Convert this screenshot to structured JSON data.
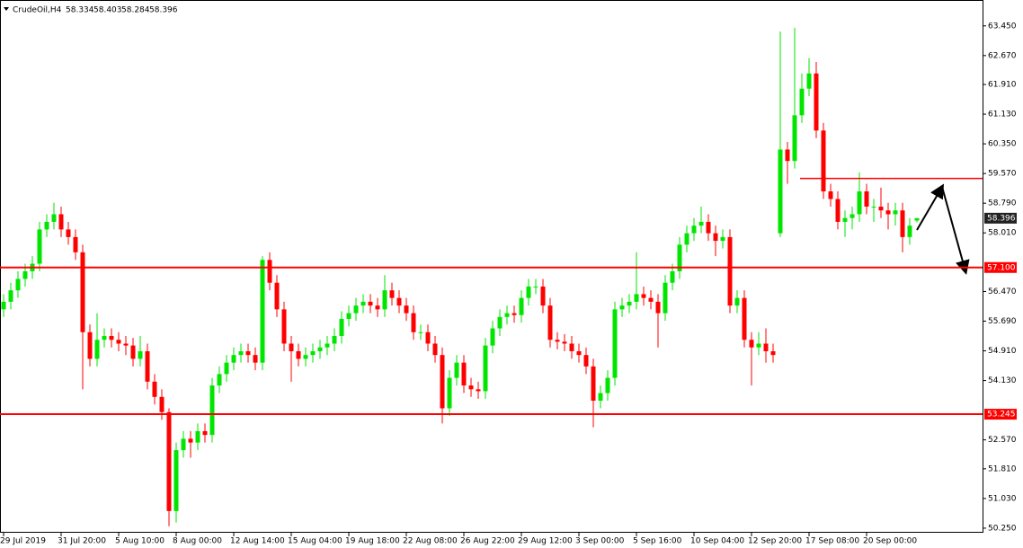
{
  "chart_data": {
    "type": "candlestick",
    "symbol": "CrudeOil,H4",
    "header_ohlc": [
      58.334,
      58.403,
      58.284,
      58.396
    ],
    "up_color": "#00e600",
    "down_color": "#ff0000",
    "level_color": "#ff0000",
    "ylim": [
      50.13,
      64.13
    ],
    "yticks": [
      {
        "value": 63.45,
        "label": "63.450"
      },
      {
        "value": 62.67,
        "label": "62.670"
      },
      {
        "value": 61.91,
        "label": "61.910"
      },
      {
        "value": 61.13,
        "label": "61.130"
      },
      {
        "value": 60.35,
        "label": "60.350"
      },
      {
        "value": 59.57,
        "label": "59.570"
      },
      {
        "value": 58.79,
        "label": "58.790"
      },
      {
        "value": 58.01,
        "label": "58.010"
      },
      {
        "value": 56.47,
        "label": "56.470"
      },
      {
        "value": 55.69,
        "label": "55.690"
      },
      {
        "value": 54.91,
        "label": "54.910"
      },
      {
        "value": 54.13,
        "label": "54.130"
      },
      {
        "value": 52.57,
        "label": "52.570"
      },
      {
        "value": 51.81,
        "label": "51.810"
      },
      {
        "value": 51.03,
        "label": "51.030"
      },
      {
        "value": 50.25,
        "label": "50.250"
      }
    ],
    "levels": [
      {
        "value": 57.1,
        "label": "57.100"
      },
      53.245
    ],
    "partial_level": 59.44,
    "last_price": 58.396,
    "categories": [
      "29 Jul 2019",
      null,
      null,
      null,
      null,
      null,
      null,
      null,
      "31 Jul 20:00",
      null,
      null,
      null,
      null,
      null,
      null,
      null,
      "5 Aug 10:00",
      null,
      null,
      null,
      null,
      null,
      null,
      null,
      "8 Aug 00:00",
      null,
      null,
      null,
      null,
      null,
      null,
      null,
      "12 Aug 14:00",
      null,
      null,
      null,
      null,
      null,
      null,
      null,
      "15 Aug 04:00",
      null,
      null,
      null,
      null,
      null,
      null,
      null,
      "19 Aug 18:00",
      null,
      null,
      null,
      null,
      null,
      null,
      null,
      "22 Aug 08:00",
      null,
      null,
      null,
      null,
      null,
      null,
      null,
      "26 Aug 22:00",
      null,
      null,
      null,
      null,
      null,
      null,
      null,
      "29 Aug 12:00",
      null,
      null,
      null,
      null,
      null,
      null,
      null,
      "3 Sep 00:00",
      null,
      null,
      null,
      null,
      null,
      null,
      null,
      "5 Sep 16:00",
      null,
      null,
      null,
      null,
      null,
      null,
      null,
      "10 Sep 04:00",
      null,
      null,
      null,
      null,
      null,
      null,
      null,
      "12 Sep 20:00",
      null,
      null,
      null,
      null,
      null,
      null,
      null,
      "17 Sep 08:00",
      null,
      null,
      null,
      null,
      null,
      null,
      null,
      "20 Sep 00:00",
      null,
      null,
      null,
      null,
      null,
      null,
      null
    ],
    "open": [
      56.0,
      56.2,
      56.5,
      56.8,
      57.0,
      57.2,
      58.1,
      58.3,
      58.5,
      58.1,
      57.9,
      57.5,
      55.4,
      54.7,
      55.2,
      55.3,
      55.2,
      55.1,
      55.05,
      54.7,
      54.9,
      54.1,
      53.7,
      53.3,
      50.7,
      52.3,
      52.6,
      52.5,
      52.8,
      52.7,
      54.0,
      54.3,
      54.6,
      54.8,
      54.9,
      54.8,
      54.6,
      57.3,
      56.7,
      56.0,
      55.1,
      54.9,
      54.7,
      54.8,
      54.9,
      55.0,
      55.1,
      55.3,
      55.75,
      55.9,
      56.1,
      56.2,
      56.1,
      56.0,
      56.5,
      56.3,
      56.1,
      55.9,
      55.4,
      55.4,
      55.1,
      54.8,
      53.4,
      54.2,
      54.6,
      54.0,
      53.9,
      53.85,
      55.05,
      55.5,
      55.8,
      55.9,
      55.85,
      56.3,
      56.6,
      56.6,
      56.1,
      55.2,
      55.15,
      55.1,
      54.9,
      54.8,
      54.5,
      53.6,
      53.8,
      54.2,
      56.0,
      56.1,
      56.2,
      56.4,
      56.3,
      56.2,
      55.9,
      56.7,
      57.0,
      57.7,
      58.0,
      58.2,
      58.3,
      58.0,
      57.8,
      57.9,
      56.1,
      56.3,
      55.2,
      55.0,
      55.1,
      54.9,
      58.0,
      60.2,
      59.9,
      61.1,
      61.8,
      62.2,
      60.7,
      59.1,
      58.9,
      58.3,
      58.4,
      58.5,
      59.1,
      58.7,
      58.7,
      58.6,
      58.5,
      58.6,
      57.9,
      58.334
    ],
    "high": [
      56.4,
      56.7,
      57.0,
      57.2,
      57.4,
      58.3,
      58.5,
      58.8,
      58.7,
      58.3,
      58.1,
      57.7,
      55.6,
      55.9,
      55.5,
      55.5,
      55.4,
      55.3,
      55.25,
      55.3,
      55.1,
      54.3,
      53.9,
      53.4,
      52.5,
      52.8,
      52.8,
      53.0,
      53.0,
      54.2,
      54.5,
      54.8,
      55.0,
      55.1,
      55.1,
      55.0,
      57.4,
      57.5,
      56.9,
      56.2,
      55.3,
      55.1,
      55.0,
      55.1,
      55.2,
      55.3,
      55.5,
      55.95,
      56.1,
      56.3,
      56.4,
      56.4,
      56.3,
      56.9,
      56.7,
      56.5,
      56.3,
      56.1,
      55.6,
      55.6,
      55.3,
      55.0,
      54.4,
      54.8,
      54.8,
      54.2,
      54.1,
      55.25,
      55.7,
      56.0,
      56.1,
      56.1,
      56.5,
      56.8,
      56.8,
      56.8,
      56.3,
      55.4,
      55.35,
      55.3,
      55.1,
      55.0,
      54.7,
      54.0,
      54.4,
      56.2,
      56.3,
      56.4,
      57.5,
      56.6,
      56.5,
      56.4,
      56.9,
      57.2,
      57.9,
      58.2,
      58.4,
      58.7,
      58.5,
      58.2,
      58.1,
      58.1,
      56.5,
      56.5,
      55.4,
      55.4,
      55.5,
      55.1,
      63.3,
      60.4,
      63.4,
      62.2,
      62.6,
      62.5,
      60.9,
      59.3,
      59.1,
      58.6,
      58.7,
      59.6,
      59.3,
      58.9,
      59.2,
      58.8,
      58.8,
      58.8,
      58.4,
      58.403
    ],
    "low": [
      55.8,
      56.0,
      56.3,
      56.6,
      56.8,
      57.0,
      57.9,
      58.1,
      57.9,
      57.7,
      57.3,
      53.9,
      54.5,
      54.5,
      55.0,
      55.0,
      54.9,
      54.8,
      54.5,
      54.5,
      53.9,
      53.5,
      53.1,
      50.3,
      50.4,
      52.1,
      52.1,
      52.3,
      52.5,
      52.5,
      53.8,
      54.1,
      54.4,
      54.6,
      54.6,
      54.4,
      54.4,
      56.5,
      55.8,
      54.9,
      54.1,
      54.5,
      54.5,
      54.6,
      54.7,
      54.8,
      54.9,
      55.1,
      55.55,
      55.7,
      55.9,
      55.9,
      55.8,
      55.8,
      56.1,
      55.9,
      55.7,
      55.2,
      55.2,
      54.9,
      54.6,
      53.0,
      53.2,
      54.0,
      53.8,
      53.7,
      53.65,
      53.65,
      54.85,
      55.3,
      55.6,
      55.65,
      55.65,
      56.1,
      56.4,
      55.9,
      55.0,
      54.95,
      54.9,
      54.7,
      54.6,
      54.3,
      52.9,
      53.4,
      53.6,
      54.0,
      55.8,
      55.9,
      56.0,
      56.1,
      56.0,
      55.0,
      55.7,
      56.5,
      56.8,
      57.5,
      57.8,
      58.0,
      57.8,
      57.4,
      57.6,
      55.9,
      55.9,
      55.0,
      54.0,
      54.8,
      54.6,
      54.6,
      57.9,
      59.3,
      59.7,
      60.9,
      61.6,
      60.5,
      58.9,
      58.7,
      58.1,
      57.9,
      58.1,
      58.3,
      58.5,
      58.3,
      58.4,
      58.1,
      58.2,
      57.5,
      57.7,
      58.284
    ],
    "close": [
      56.2,
      56.5,
      56.8,
      57.0,
      57.2,
      58.1,
      58.3,
      58.5,
      58.1,
      57.9,
      57.5,
      55.4,
      54.7,
      55.2,
      55.3,
      55.2,
      55.1,
      55.05,
      54.7,
      54.9,
      54.1,
      53.7,
      53.3,
      50.7,
      52.3,
      52.6,
      52.5,
      52.8,
      52.7,
      54.0,
      54.3,
      54.6,
      54.8,
      54.9,
      54.8,
      54.6,
      57.3,
      56.7,
      56.0,
      55.1,
      54.9,
      54.7,
      54.8,
      54.9,
      55.0,
      55.1,
      55.3,
      55.75,
      55.9,
      56.1,
      56.2,
      56.1,
      56.0,
      56.5,
      56.3,
      56.1,
      55.9,
      55.4,
      55.4,
      55.1,
      54.8,
      53.4,
      54.2,
      54.6,
      54.0,
      53.9,
      53.85,
      55.05,
      55.5,
      55.8,
      55.9,
      55.85,
      56.3,
      56.6,
      56.6,
      56.1,
      55.2,
      55.15,
      55.1,
      54.9,
      54.8,
      54.5,
      53.6,
      53.8,
      54.2,
      56.0,
      56.1,
      56.2,
      56.4,
      56.3,
      56.2,
      55.9,
      56.7,
      57.0,
      57.7,
      58.0,
      58.2,
      58.3,
      58.0,
      57.8,
      57.9,
      56.1,
      56.3,
      55.2,
      55.0,
      55.1,
      54.9,
      54.8,
      60.2,
      59.9,
      61.1,
      61.8,
      62.2,
      60.7,
      59.1,
      58.9,
      58.3,
      58.4,
      58.5,
      59.1,
      58.7,
      58.7,
      58.6,
      58.5,
      58.6,
      57.9,
      58.2,
      58.396
    ]
  }
}
